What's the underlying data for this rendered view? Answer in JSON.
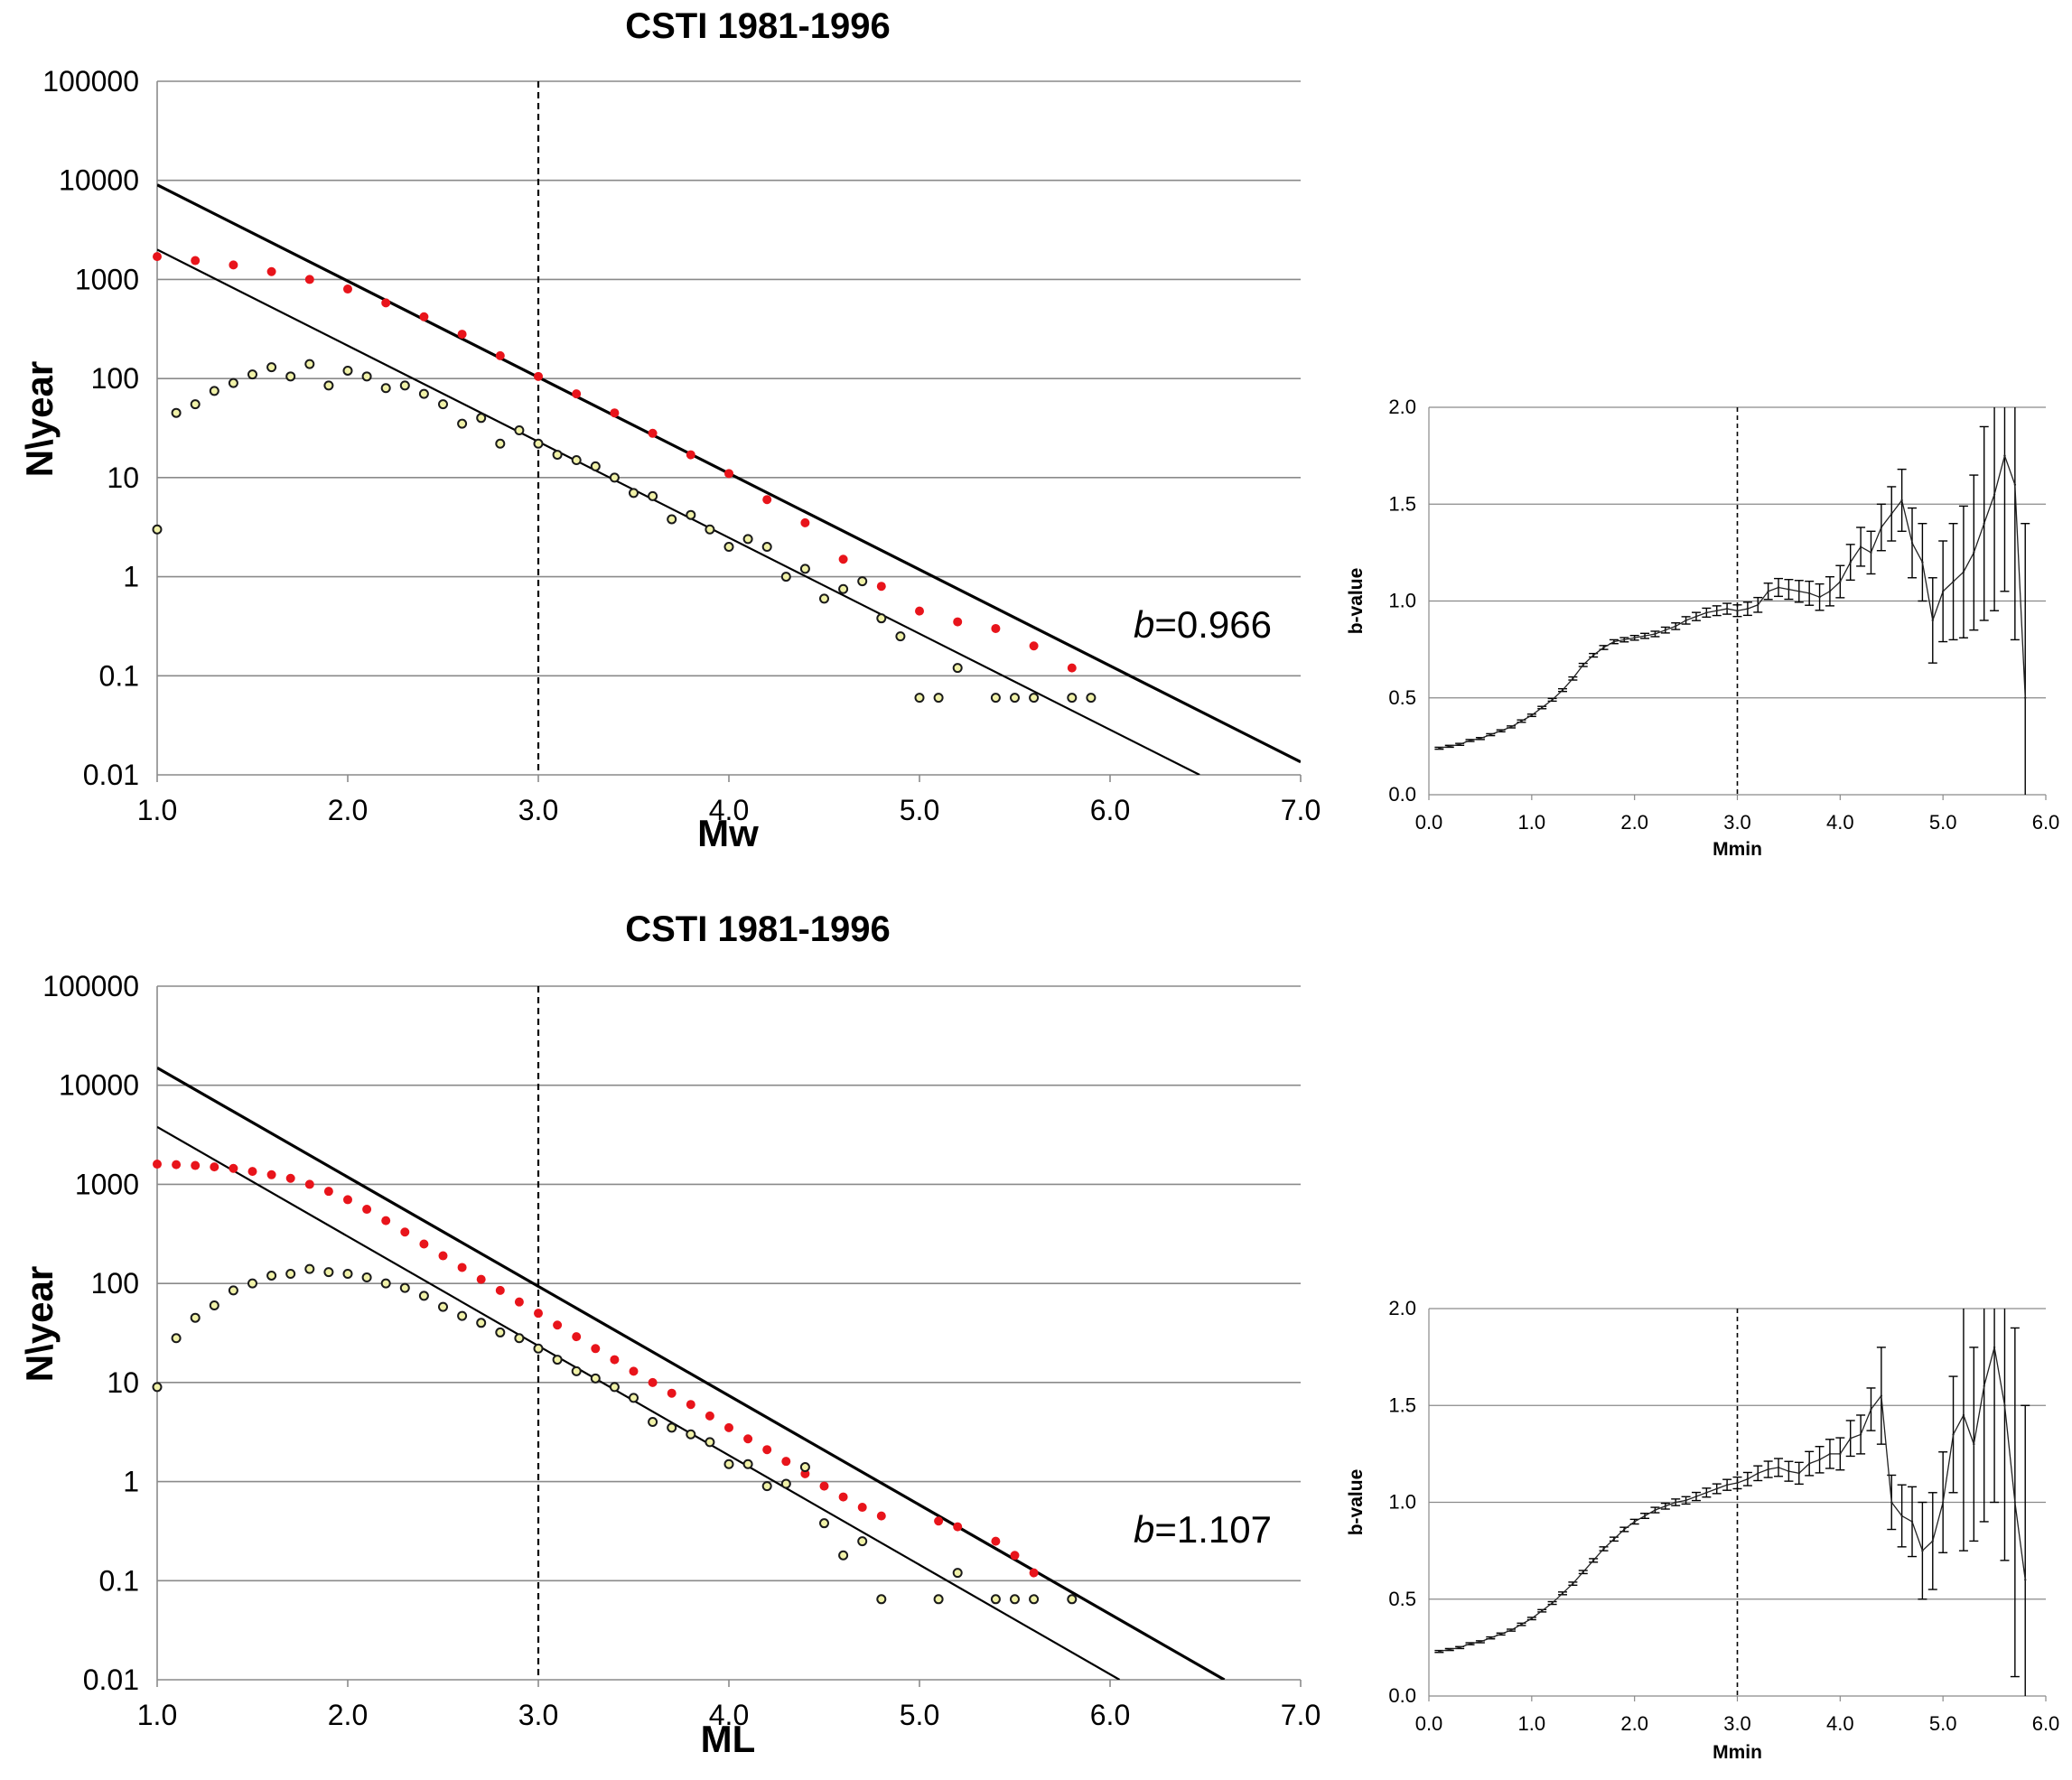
{
  "chart_data": [
    {
      "type": "scatter",
      "title": "CSTI 1981-1996",
      "xlabel": "Mw",
      "ylabel": "N\\year",
      "xlim": [
        1.0,
        7.0
      ],
      "ylim": [
        0.01,
        100000
      ],
      "yscale": "log",
      "grid": "horizontal",
      "x_ticks": [
        "1.0",
        "2.0",
        "3.0",
        "4.0",
        "5.0",
        "6.0",
        "7.0"
      ],
      "y_ticks": [
        "0.01",
        "0.1",
        "1",
        "10",
        "100",
        "1000",
        "10000",
        "100000"
      ],
      "vline_x": 3.0,
      "annotation": {
        "prefix": "b",
        "text": "=0.966"
      },
      "cumulative": {
        "color": "#e8141b",
        "x": [
          1.0,
          1.2,
          1.4,
          1.6,
          1.8,
          2.0,
          2.2,
          2.4,
          2.6,
          2.8,
          3.0,
          3.2,
          3.4,
          3.6,
          3.8,
          4.0,
          4.2,
          4.4,
          4.6,
          4.8,
          5.0,
          5.2,
          5.4,
          5.6,
          5.8
        ],
        "y": [
          1700,
          1550,
          1400,
          1200,
          1000,
          800,
          580,
          420,
          280,
          170,
          105,
          70,
          45,
          28,
          17,
          11,
          6,
          3.5,
          1.5,
          0.8,
          0.45,
          0.35,
          0.3,
          0.2,
          0.12
        ]
      },
      "incremental": {
        "color": "#f1f2a8",
        "x": [
          1.0,
          1.1,
          1.2,
          1.3,
          1.4,
          1.5,
          1.6,
          1.7,
          1.8,
          1.9,
          2.0,
          2.1,
          2.2,
          2.3,
          2.4,
          2.5,
          2.6,
          2.7,
          2.8,
          2.9,
          3.0,
          3.1,
          3.2,
          3.3,
          3.4,
          3.5,
          3.6,
          3.7,
          3.8,
          3.9,
          4.0,
          4.1,
          4.2,
          4.3,
          4.4,
          4.5,
          4.6,
          4.7,
          4.8,
          4.9,
          5.0,
          5.1,
          5.2,
          5.4,
          5.5,
          5.6,
          5.8,
          5.9
        ],
        "y": [
          3,
          45,
          55,
          75,
          90,
          110,
          130,
          105,
          140,
          85,
          120,
          105,
          80,
          85,
          70,
          55,
          35,
          40,
          22,
          30,
          22,
          17,
          15,
          13,
          10,
          7,
          6.5,
          3.8,
          4.2,
          3,
          2,
          2.4,
          2,
          1,
          1.2,
          0.6,
          0.75,
          0.9,
          0.38,
          0.25,
          0.06,
          0.06,
          0.12,
          0.06,
          0.06,
          0.06,
          0.06,
          0.06
        ]
      },
      "fit_lines": [
        {
          "x": [
            1.0,
            7.0
          ],
          "y": [
            9000,
            0.0135
          ]
        },
        {
          "x": [
            1.0,
            6.47
          ],
          "y": [
            2000,
            0.01
          ]
        }
      ]
    },
    {
      "type": "line",
      "xlabel": "Mmin",
      "ylabel": "b-value",
      "xlim": [
        0.0,
        6.0
      ],
      "ylim": [
        0.0,
        2.0
      ],
      "grid": "horizontal",
      "x_ticks": [
        "0.0",
        "1.0",
        "2.0",
        "3.0",
        "4.0",
        "5.0",
        "6.0"
      ],
      "y_ticks": [
        "0.0",
        "0.5",
        "1.0",
        "1.5",
        "2.0"
      ],
      "vline_x": 3.0,
      "x": [
        0.1,
        0.2,
        0.3,
        0.4,
        0.5,
        0.6,
        0.7,
        0.8,
        0.9,
        1.0,
        1.1,
        1.2,
        1.3,
        1.4,
        1.5,
        1.6,
        1.7,
        1.8,
        1.9,
        2.0,
        2.1,
        2.2,
        2.3,
        2.4,
        2.5,
        2.6,
        2.7,
        2.8,
        2.9,
        3.0,
        3.1,
        3.2,
        3.3,
        3.4,
        3.5,
        3.6,
        3.7,
        3.8,
        3.9,
        4.0,
        4.1,
        4.2,
        4.3,
        4.4,
        4.5,
        4.6,
        4.7,
        4.8,
        4.9,
        5.0,
        5.1,
        5.2,
        5.3,
        5.4,
        5.5,
        5.6,
        5.7,
        5.8
      ],
      "values": [
        0.24,
        0.25,
        0.26,
        0.28,
        0.29,
        0.31,
        0.33,
        0.35,
        0.38,
        0.41,
        0.45,
        0.49,
        0.54,
        0.6,
        0.67,
        0.72,
        0.76,
        0.79,
        0.8,
        0.81,
        0.82,
        0.83,
        0.85,
        0.87,
        0.9,
        0.92,
        0.94,
        0.95,
        0.96,
        0.95,
        0.96,
        0.98,
        1.05,
        1.07,
        1.06,
        1.05,
        1.04,
        1.02,
        1.05,
        1.1,
        1.2,
        1.28,
        1.25,
        1.38,
        1.45,
        1.52,
        1.3,
        1.2,
        0.9,
        1.05,
        1.1,
        1.15,
        1.25,
        1.4,
        1.55,
        1.75,
        1.6,
        0.5
      ],
      "errors": [
        0.005,
        0.005,
        0.005,
        0.005,
        0.005,
        0.005,
        0.005,
        0.005,
        0.006,
        0.006,
        0.006,
        0.007,
        0.007,
        0.008,
        0.008,
        0.009,
        0.01,
        0.01,
        0.011,
        0.012,
        0.013,
        0.014,
        0.015,
        0.017,
        0.019,
        0.021,
        0.023,
        0.025,
        0.028,
        0.03,
        0.034,
        0.038,
        0.042,
        0.046,
        0.051,
        0.056,
        0.062,
        0.068,
        0.075,
        0.083,
        0.092,
        0.1,
        0.11,
        0.12,
        0.14,
        0.16,
        0.18,
        0.2,
        0.22,
        0.26,
        0.3,
        0.34,
        0.4,
        0.5,
        0.6,
        0.7,
        0.8,
        0.9
      ]
    },
    {
      "type": "scatter",
      "title": "CSTI 1981-1996",
      "xlabel": "ML",
      "ylabel": "N\\year",
      "xlim": [
        1.0,
        7.0
      ],
      "ylim": [
        0.01,
        100000
      ],
      "yscale": "log",
      "grid": "horizontal",
      "x_ticks": [
        "1.0",
        "2.0",
        "3.0",
        "4.0",
        "5.0",
        "6.0",
        "7.0"
      ],
      "y_ticks": [
        "0.01",
        "0.1",
        "1",
        "10",
        "100",
        "1000",
        "10000",
        "100000"
      ],
      "vline_x": 3.0,
      "annotation": {
        "prefix": "b",
        "text": "=1.107"
      },
      "cumulative": {
        "color": "#e8141b",
        "x": [
          1.0,
          1.1,
          1.2,
          1.3,
          1.4,
          1.5,
          1.6,
          1.7,
          1.8,
          1.9,
          2.0,
          2.1,
          2.2,
          2.3,
          2.4,
          2.5,
          2.6,
          2.7,
          2.8,
          2.9,
          3.0,
          3.1,
          3.2,
          3.3,
          3.4,
          3.5,
          3.6,
          3.7,
          3.8,
          3.9,
          4.0,
          4.1,
          4.2,
          4.3,
          4.4,
          4.5,
          4.6,
          4.7,
          4.8,
          5.1,
          5.2,
          5.4,
          5.5,
          5.6
        ],
        "y": [
          1600,
          1580,
          1550,
          1500,
          1450,
          1350,
          1250,
          1150,
          1000,
          850,
          700,
          560,
          430,
          330,
          250,
          190,
          145,
          110,
          85,
          65,
          50,
          38,
          29,
          22,
          17,
          13,
          10,
          7.8,
          6,
          4.6,
          3.5,
          2.7,
          2.1,
          1.6,
          1.2,
          0.9,
          0.7,
          0.55,
          0.45,
          0.4,
          0.35,
          0.25,
          0.18,
          0.12
        ]
      },
      "incremental": {
        "color": "#f1f2a8",
        "x": [
          1.0,
          1.1,
          1.2,
          1.3,
          1.4,
          1.5,
          1.6,
          1.7,
          1.8,
          1.9,
          2.0,
          2.1,
          2.2,
          2.3,
          2.4,
          2.5,
          2.6,
          2.7,
          2.8,
          2.9,
          3.0,
          3.1,
          3.2,
          3.3,
          3.4,
          3.5,
          3.6,
          3.7,
          3.8,
          3.9,
          4.0,
          4.1,
          4.2,
          4.3,
          4.4,
          4.5,
          4.6,
          4.7,
          4.8,
          5.1,
          5.2,
          5.4,
          5.5,
          5.6,
          5.8
        ],
        "y": [
          9,
          28,
          45,
          60,
          85,
          100,
          120,
          125,
          140,
          130,
          125,
          115,
          100,
          90,
          75,
          58,
          47,
          40,
          32,
          28,
          22,
          17,
          13,
          11,
          9,
          7,
          4,
          3.5,
          3,
          2.5,
          1.5,
          1.5,
          0.9,
          0.95,
          1.4,
          0.38,
          0.18,
          0.25,
          0.065,
          0.065,
          0.12,
          0.065,
          0.065,
          0.065,
          0.065
        ]
      },
      "fit_lines": [
        {
          "x": [
            1.0,
            6.6
          ],
          "y": [
            15000,
            0.01
          ]
        },
        {
          "x": [
            1.0,
            6.05
          ],
          "y": [
            3800,
            0.01
          ]
        }
      ]
    },
    {
      "type": "line",
      "xlabel": "Mmin",
      "ylabel": "b-value",
      "xlim": [
        0.0,
        6.0
      ],
      "ylim": [
        0.0,
        2.0
      ],
      "grid": "horizontal",
      "x_ticks": [
        "0.0",
        "1.0",
        "2.0",
        "3.0",
        "4.0",
        "5.0",
        "6.0"
      ],
      "y_ticks": [
        "0.0",
        "0.5",
        "1.0",
        "1.5",
        "2.0"
      ],
      "vline_x": 3.0,
      "x": [
        0.1,
        0.2,
        0.3,
        0.4,
        0.5,
        0.6,
        0.7,
        0.8,
        0.9,
        1.0,
        1.1,
        1.2,
        1.3,
        1.4,
        1.5,
        1.6,
        1.7,
        1.8,
        1.9,
        2.0,
        2.1,
        2.2,
        2.3,
        2.4,
        2.5,
        2.6,
        2.7,
        2.8,
        2.9,
        3.0,
        3.1,
        3.2,
        3.3,
        3.4,
        3.5,
        3.6,
        3.7,
        3.8,
        3.9,
        4.0,
        4.1,
        4.2,
        4.3,
        4.4,
        4.5,
        4.6,
        4.7,
        4.8,
        4.9,
        5.0,
        5.1,
        5.2,
        5.3,
        5.4,
        5.5,
        5.6,
        5.7,
        5.8
      ],
      "values": [
        0.23,
        0.24,
        0.25,
        0.27,
        0.28,
        0.3,
        0.32,
        0.34,
        0.37,
        0.4,
        0.44,
        0.48,
        0.53,
        0.58,
        0.64,
        0.7,
        0.76,
        0.81,
        0.86,
        0.9,
        0.93,
        0.96,
        0.98,
        1.0,
        1.01,
        1.03,
        1.05,
        1.07,
        1.09,
        1.1,
        1.12,
        1.15,
        1.17,
        1.18,
        1.16,
        1.15,
        1.2,
        1.22,
        1.25,
        1.25,
        1.33,
        1.35,
        1.48,
        1.55,
        1.0,
        0.93,
        0.9,
        0.75,
        0.8,
        1.0,
        1.35,
        1.45,
        1.3,
        1.6,
        1.8,
        1.5,
        1.0,
        0.6
      ],
      "errors": [
        0.005,
        0.005,
        0.005,
        0.005,
        0.005,
        0.005,
        0.005,
        0.005,
        0.006,
        0.006,
        0.006,
        0.007,
        0.007,
        0.008,
        0.008,
        0.009,
        0.01,
        0.01,
        0.011,
        0.012,
        0.013,
        0.014,
        0.015,
        0.017,
        0.019,
        0.021,
        0.023,
        0.025,
        0.028,
        0.03,
        0.034,
        0.038,
        0.042,
        0.046,
        0.051,
        0.056,
        0.062,
        0.068,
        0.075,
        0.083,
        0.092,
        0.1,
        0.11,
        0.25,
        0.14,
        0.16,
        0.18,
        0.25,
        0.25,
        0.26,
        0.3,
        0.7,
        0.5,
        0.7,
        0.8,
        0.8,
        0.9,
        0.9
      ]
    }
  ]
}
